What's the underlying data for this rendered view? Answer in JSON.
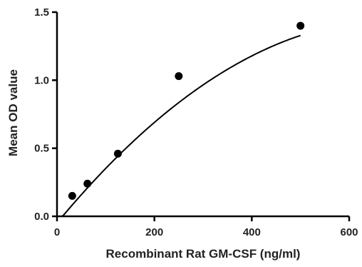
{
  "chart_data": {
    "type": "scatter",
    "title": "",
    "xlabel": "Recombinant Rat GM-CSF (ng/ml)",
    "ylabel": "Mean OD value",
    "xlim": [
      0,
      600
    ],
    "ylim": [
      0.0,
      1.5
    ],
    "x_ticks": [
      0,
      200,
      400,
      600
    ],
    "x_tick_labels": [
      "0",
      "200",
      "400",
      "600"
    ],
    "y_ticks": [
      0.0,
      0.5,
      1.0,
      1.5
    ],
    "y_tick_labels": [
      "0.0",
      "0.5",
      "1.0",
      "1.5"
    ],
    "grid": false,
    "legend": "none",
    "series": [
      {
        "points": [
          {
            "x": 31.25,
            "y": 0.15
          },
          {
            "x": 62.5,
            "y": 0.24
          },
          {
            "x": 125,
            "y": 0.46
          },
          {
            "x": 250,
            "y": 1.03
          },
          {
            "x": 500,
            "y": 1.4
          }
        ],
        "fit_curve": {
          "model": "quadratic",
          "coefficients": [
            -0.049,
            0.00432,
            -3.13e-06
          ],
          "x_range": [
            10,
            500
          ]
        }
      }
    ],
    "colors": {
      "marker": "#000000",
      "line": "#000000",
      "axis": "#000000"
    }
  }
}
